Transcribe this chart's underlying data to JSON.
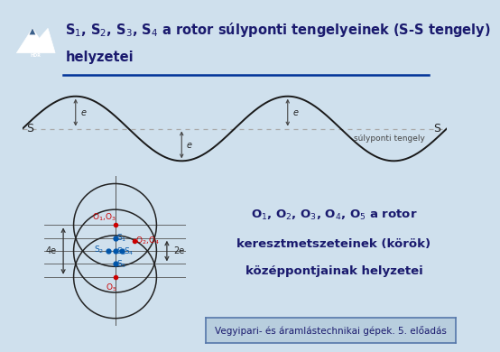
{
  "bg_color": "#cfe0ed",
  "title_text1": "S$_1$, S$_2$, S$_3$, S$_4$ a rotor súlyponti tengelyeinek (S-S tengely)",
  "title_text2": "helyzetei",
  "title_color": "#1a1a6e",
  "title_fontsize": 10.5,
  "header_line_color": "#003399",
  "sine_color": "#1a1a1a",
  "dashed_line_color": "#aaaaaa",
  "s_label_color": "#222222",
  "sulyponti_text": "súlyponti tengely",
  "circle_color": "#222222",
  "dim_color": "#222222",
  "red_label_color": "#cc0000",
  "blue_label_color": "#0055aa",
  "text2_line1": "O$_1$, O$_2$, O$_3$, O$_4$, O$_5$ a rotor",
  "text2_line2": "keresztmetszeteinek (körök)",
  "text2_line3": "középpontjainak helyzetei",
  "text2_color": "#1a1a6e",
  "text2_fontsize": 9.5,
  "footer_text": "Vegyipari- és áramlástechnikai gépek. 5. előadás",
  "footer_color": "#1a1a6e",
  "footer_bg": "#b8cede",
  "footer_border": "#5577aa",
  "footer_fontsize": 7.5
}
